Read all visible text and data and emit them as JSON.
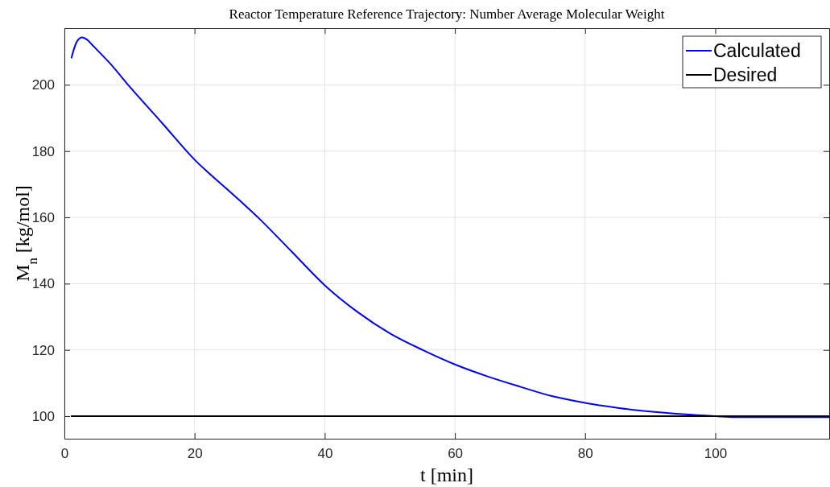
{
  "chart_data": {
    "type": "line",
    "title": "Reactor Temperature Reference Trajectory: Number Average Molecular Weight",
    "xlabel": "t [min]",
    "ylabel": "M$_{n}$ [kg/mol]",
    "xlim": [
      0,
      117.5
    ],
    "xticks": [
      0,
      20,
      40,
      60,
      80,
      100
    ],
    "ylim": [
      93.2,
      217.1
    ],
    "yticks": [
      100,
      120,
      140,
      160,
      180,
      200
    ],
    "grid": true,
    "legend": "top right",
    "line_style": "solid",
    "marker": "none",
    "series": [
      {
        "name": "Calculated",
        "color": "#0000ff",
        "x": [
          1.1,
          1.5,
          2,
          2.7,
          3.5,
          4.3,
          5.1,
          7,
          10,
          15,
          20,
          25,
          30,
          35,
          40,
          45,
          50,
          55,
          60,
          65,
          70,
          75,
          80,
          85,
          90,
          95,
          100,
          103,
          117.5
        ],
        "values": [
          208.2,
          211,
          213.3,
          214.3,
          213.6,
          212,
          210.4,
          206.5,
          199.5,
          188.5,
          177.4,
          168.5,
          159.5,
          149.5,
          139.5,
          131.5,
          125,
          120,
          115.6,
          112,
          108.9,
          106,
          104,
          102.5,
          101.4,
          100.6,
          100,
          99.7,
          99.7
        ]
      },
      {
        "name": "Desired",
        "color": "#000000",
        "x": [
          1.1,
          117.5
        ],
        "values": [
          100,
          100
        ]
      }
    ]
  }
}
